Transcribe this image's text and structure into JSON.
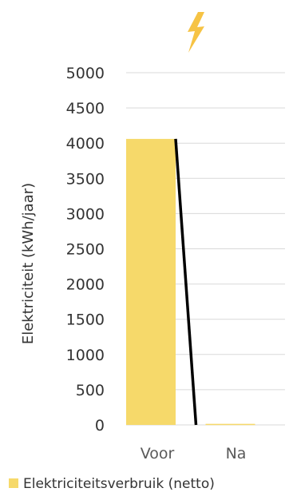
{
  "chart_data": {
    "type": "bar",
    "title": "",
    "categories": [
      "Voor",
      "Na"
    ],
    "series": [
      {
        "name": "Elektriciteitsverbruik (netto)",
        "values": [
          4060,
          15
        ],
        "color": "#F6D96A"
      }
    ],
    "overlay_line": {
      "values": [
        4060,
        0
      ],
      "color": "#000000"
    },
    "xlabel": "",
    "ylabel": "Elektriciteit (kWh/jaar)",
    "ylim": [
      0,
      5000
    ],
    "yticks": [
      0,
      500,
      1000,
      1500,
      2000,
      2500,
      3000,
      3500,
      4000,
      4500,
      5000
    ],
    "grid": true,
    "legend_position": "bottom-left",
    "icon": "lightning-bolt-icon",
    "icon_color": "#F6C344",
    "grid_color": "#D9D9D9",
    "text_color": "#333333",
    "tick_color": "#595959"
  }
}
